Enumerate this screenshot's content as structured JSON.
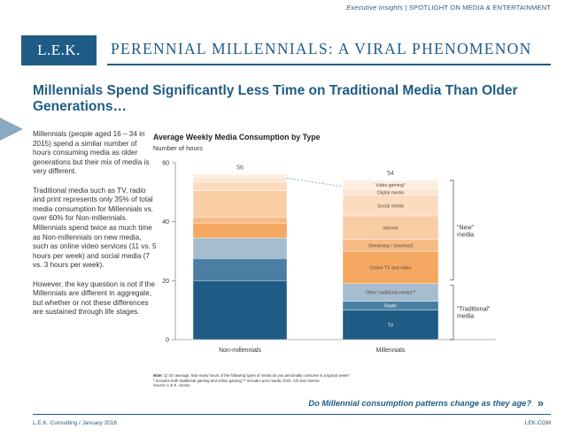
{
  "header": {
    "insights_label": "Executive Insights",
    "insights_sep": " | ",
    "insights_topic": "SPOTLIGHT ON MEDIA & ENTERTAINMENT",
    "logo": "L.E.K.",
    "title": "PERENNIAL MILLENNIALS: A VIRAL PHENOMENON"
  },
  "slide_title": "Millennials Spend Significantly Less Time on Traditional Media Than Older Generations…",
  "body_paragraphs": [
    "Millennials (people aged 16 – 34 in 2015) spend a similar number of hours consuming media as older generations but their mix of media is very different.",
    "Traditional media such as TV, radio and print represents only 35% of total media consumption for Millennials vs. over 60% for Non-millennials. Millennials spend twice as much time as Non-millennials on new media, such as online video services (11 vs. 5 hours per week) and social media (7 vs. 3 hours per week).",
    "However, the key question is not if the Millennials are different in aggregate, but whether or not these differences are sustained through life stages."
  ],
  "chart_data": {
    "type": "bar",
    "stacked": true,
    "title": "Average Weekly Media Consumption by Type",
    "ylabel": "Number of hours",
    "ylim": [
      0,
      60
    ],
    "yticks": [
      0,
      20,
      40,
      60
    ],
    "categories": [
      "Non-millennials",
      "Millennials"
    ],
    "totals": [
      56,
      54
    ],
    "series": [
      {
        "name": "TV",
        "color": "#1f5c85",
        "values": [
          20,
          10
        ]
      },
      {
        "name": "Radio",
        "color": "#4a7ea3",
        "values": [
          7.5,
          3
        ]
      },
      {
        "name": "Other traditional media**",
        "color": "#a6bccf",
        "values": [
          7,
          6
        ]
      },
      {
        "name": "Online TV and video",
        "color": "#f5a862",
        "values": [
          5,
          11
        ]
      },
      {
        "name": "Streaming / download",
        "color": "#f7bb86",
        "values": [
          2,
          4
        ]
      },
      {
        "name": "Internet",
        "color": "#f9cda4",
        "values": [
          9,
          8
        ]
      },
      {
        "name": "Social media",
        "color": "#fbdcbe",
        "values": [
          3,
          7
        ]
      },
      {
        "name": "Digital media",
        "color": "#fce6d2",
        "values": [
          1.5,
          2
        ]
      },
      {
        "name": "Video gaming*",
        "color": "#fdeee0",
        "values": [
          1,
          3
        ]
      }
    ],
    "brackets": {
      "new": "\"New\" media",
      "traditional": "\"Traditional\" media"
    },
    "note_lines": [
      "Note: Q: On average, how many hours of the following types of media do you personally consume in a typical week?",
      "* Includes both traditional gaming and online gaming   ** Includes print media, DVD, CD and cinema",
      "Source: L.E.K. survey"
    ]
  },
  "footer": {
    "question": "Do Millennial consumption patterns change as they age?",
    "question_arrow": "»",
    "left": "L.E.K. Consulting / January 2016",
    "right": "LEK.COM"
  }
}
